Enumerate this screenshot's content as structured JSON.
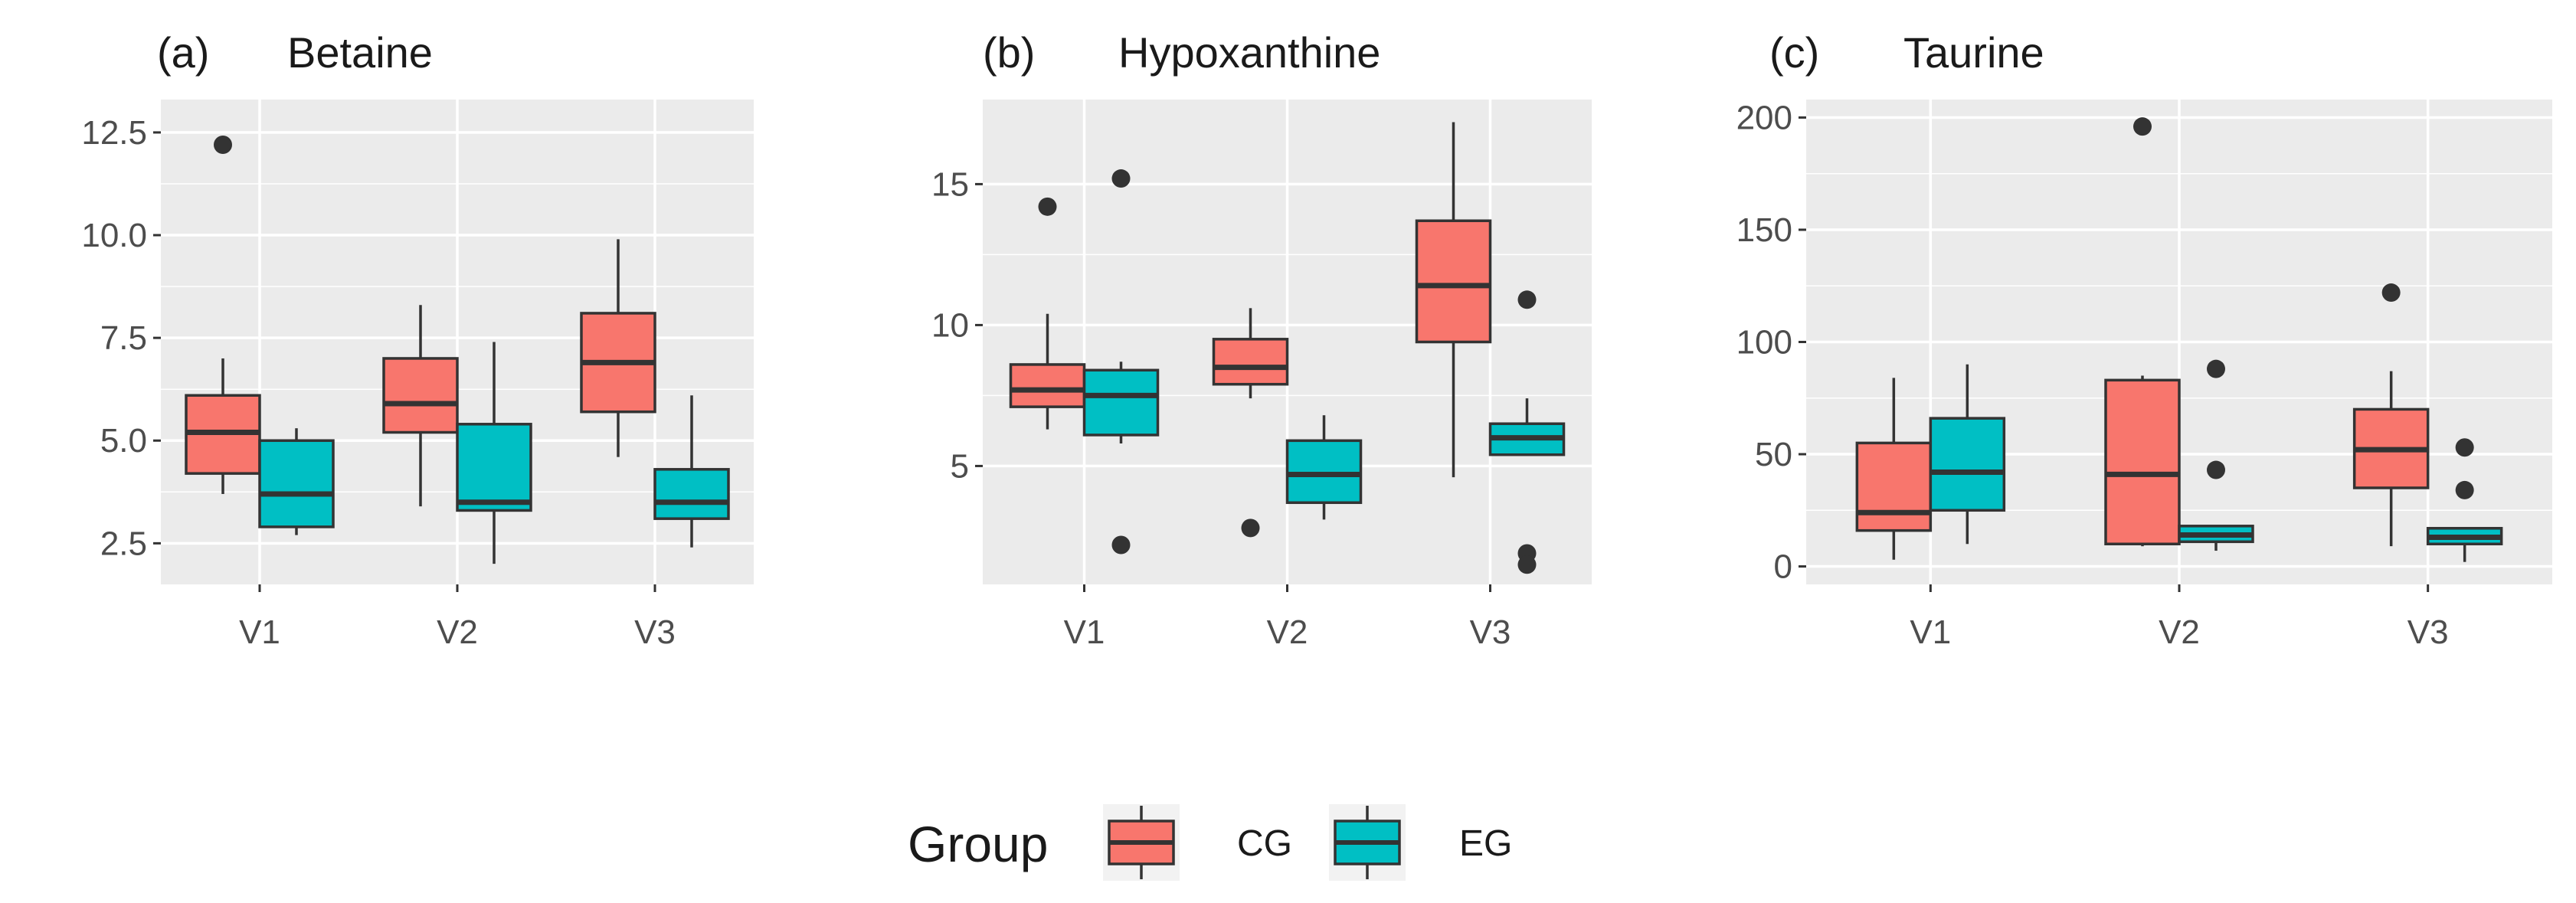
{
  "chart_data": [
    {
      "type": "box",
      "panel_label": "(a)",
      "title": "Betaine",
      "categories": [
        "V1",
        "V2",
        "V3"
      ],
      "yticks": [
        2.5,
        5.0,
        7.5,
        10.0,
        12.5
      ],
      "ytick_labels": [
        "2.5",
        "5.0",
        "7.5",
        "10.0",
        "12.5"
      ],
      "ylim": [
        1.5,
        13.3
      ],
      "series": [
        {
          "name": "CG",
          "boxes": [
            {
              "min": 3.7,
              "q1": 4.2,
              "median": 5.2,
              "q3": 6.1,
              "max": 7.0,
              "outliers": [
                12.2
              ]
            },
            {
              "min": 3.4,
              "q1": 5.2,
              "median": 5.9,
              "q3": 7.0,
              "max": 8.3,
              "outliers": []
            },
            {
              "min": 4.6,
              "q1": 5.7,
              "median": 6.9,
              "q3": 8.1,
              "max": 9.9,
              "outliers": []
            }
          ]
        },
        {
          "name": "EG",
          "boxes": [
            {
              "min": 2.7,
              "q1": 2.9,
              "median": 3.7,
              "q3": 5.0,
              "max": 5.3,
              "outliers": []
            },
            {
              "min": 2.0,
              "q1": 3.3,
              "median": 3.5,
              "q3": 5.4,
              "max": 7.4,
              "outliers": []
            },
            {
              "min": 2.4,
              "q1": 3.1,
              "median": 3.5,
              "q3": 4.3,
              "max": 6.1,
              "outliers": []
            }
          ]
        }
      ]
    },
    {
      "type": "box",
      "panel_label": "(b)",
      "title": "Hypoxanthine",
      "categories": [
        "V1",
        "V2",
        "V3"
      ],
      "yticks": [
        5,
        10,
        15
      ],
      "ytick_labels": [
        "5",
        "10",
        "15"
      ],
      "ylim": [
        0.8,
        18.0
      ],
      "series": [
        {
          "name": "CG",
          "boxes": [
            {
              "min": 6.3,
              "q1": 7.1,
              "median": 7.7,
              "q3": 8.6,
              "max": 10.4,
              "outliers": [
                14.2
              ]
            },
            {
              "min": 7.4,
              "q1": 7.9,
              "median": 8.5,
              "q3": 9.5,
              "max": 10.6,
              "outliers": [
                2.8
              ]
            },
            {
              "min": 4.6,
              "q1": 9.4,
              "median": 11.4,
              "q3": 13.7,
              "max": 17.2,
              "outliers": []
            }
          ]
        },
        {
          "name": "EG",
          "boxes": [
            {
              "min": 5.8,
              "q1": 6.1,
              "median": 7.5,
              "q3": 8.4,
              "max": 8.7,
              "outliers": [
                15.2,
                2.2
              ]
            },
            {
              "min": 3.1,
              "q1": 3.7,
              "median": 4.7,
              "q3": 5.9,
              "max": 6.8,
              "outliers": []
            },
            {
              "min": 5.4,
              "q1": 5.4,
              "median": 6.0,
              "q3": 6.5,
              "max": 7.4,
              "outliers": [
                10.9,
                1.9,
                1.5
              ]
            }
          ]
        }
      ]
    },
    {
      "type": "box",
      "panel_label": "(c)",
      "title": "Taurine",
      "categories": [
        "V1",
        "V2",
        "V3"
      ],
      "yticks": [
        0,
        50,
        100,
        150,
        200
      ],
      "ytick_labels": [
        "0",
        "50",
        "100",
        "150",
        "200"
      ],
      "ylim": [
        -8,
        208
      ],
      "series": [
        {
          "name": "CG",
          "boxes": [
            {
              "min": 3,
              "q1": 16,
              "median": 24,
              "q3": 55,
              "max": 84,
              "outliers": []
            },
            {
              "min": 9,
              "q1": 10,
              "median": 41,
              "q3": 83,
              "max": 85,
              "outliers": [
                196
              ]
            },
            {
              "min": 9,
              "q1": 35,
              "median": 52,
              "q3": 70,
              "max": 87,
              "outliers": [
                122
              ]
            }
          ]
        },
        {
          "name": "EG",
          "boxes": [
            {
              "min": 10,
              "q1": 25,
              "median": 42,
              "q3": 66,
              "max": 90,
              "outliers": []
            },
            {
              "min": 7,
              "q1": 11,
              "median": 14,
              "q3": 18,
              "max": 18,
              "outliers": [
                88,
                43
              ]
            },
            {
              "min": 2,
              "q1": 10,
              "median": 13,
              "q3": 17,
              "max": 17,
              "outliers": [
                53,
                34
              ]
            }
          ]
        }
      ]
    }
  ],
  "legend": {
    "title": "Group",
    "entries": [
      {
        "label": "CG",
        "color": "#F8766D"
      },
      {
        "label": "EG",
        "color": "#00BFC4"
      }
    ]
  },
  "colors": {
    "CG": "#F8766D",
    "EG": "#00BFC4",
    "panel_background": "#EBEBEB",
    "grid": "#FFFFFF",
    "outline": "#333333"
  }
}
